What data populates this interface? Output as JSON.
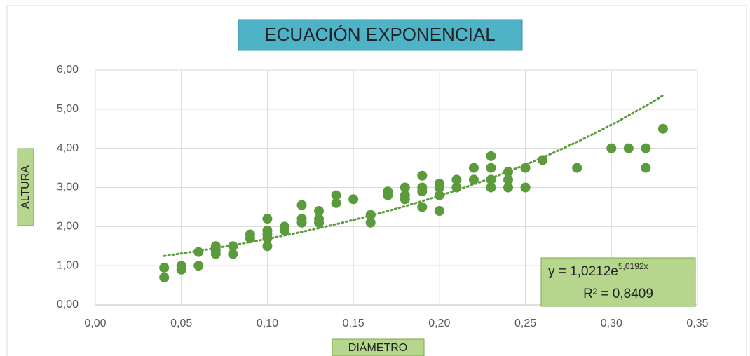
{
  "chart_data": {
    "type": "scatter",
    "title": "ECUACIÓN EXPONENCIAL",
    "x_label": "DIÁMETRO",
    "y_label": "ALTURA",
    "x": [
      0.04,
      0.04,
      0.05,
      0.05,
      0.06,
      0.06,
      0.07,
      0.07,
      0.07,
      0.08,
      0.08,
      0.09,
      0.09,
      0.1,
      0.1,
      0.1,
      0.1,
      0.1,
      0.11,
      0.11,
      0.12,
      0.12,
      0.12,
      0.13,
      0.13,
      0.13,
      0.14,
      0.14,
      0.15,
      0.16,
      0.16,
      0.17,
      0.17,
      0.18,
      0.18,
      0.18,
      0.19,
      0.19,
      0.19,
      0.19,
      0.2,
      0.2,
      0.2,
      0.2,
      0.21,
      0.21,
      0.22,
      0.22,
      0.23,
      0.23,
      0.23,
      0.23,
      0.24,
      0.24,
      0.24,
      0.25,
      0.25,
      0.26,
      0.28,
      0.3,
      0.31,
      0.32,
      0.32,
      0.33
    ],
    "values": [
      0.95,
      0.7,
      1.0,
      0.9,
      1.35,
      1.0,
      1.5,
      1.4,
      1.3,
      1.5,
      1.3,
      1.8,
      1.7,
      2.2,
      1.9,
      1.8,
      1.7,
      1.5,
      2.0,
      1.9,
      2.55,
      2.2,
      2.1,
      2.4,
      2.2,
      2.1,
      2.8,
      2.6,
      2.7,
      2.3,
      2.1,
      2.9,
      2.8,
      3.0,
      2.8,
      2.7,
      3.3,
      3.0,
      2.9,
      2.5,
      3.1,
      3.0,
      2.8,
      2.4,
      3.2,
      3.0,
      3.5,
      3.2,
      3.8,
      3.5,
      3.2,
      3.0,
      3.4,
      3.2,
      3.0,
      3.5,
      3.0,
      3.7,
      3.5,
      4.0,
      4.0,
      4.0,
      3.5,
      4.5
    ],
    "color": "#5b9b3c",
    "trendline": {
      "a": 1.0212,
      "b": 5.0192,
      "xlim": [
        0.04,
        0.33
      ],
      "label": "y = 1,0212e",
      "exponent_label": "5,0192x",
      "r2_label": "R² = 0,8409"
    },
    "xlim": [
      0,
      0.35
    ],
    "ylim": [
      0,
      6
    ],
    "xticks": [
      {
        "value": 0,
        "label": "0,00"
      },
      {
        "value": 0.05,
        "label": "0,05"
      },
      {
        "value": 0.1,
        "label": "0,10"
      },
      {
        "value": 0.15,
        "label": "0,15"
      },
      {
        "value": 0.2,
        "label": "0,20"
      },
      {
        "value": 0.25,
        "label": "0,25"
      },
      {
        "value": 0.3,
        "label": "0,30"
      },
      {
        "value": 0.35,
        "label": "0,35"
      }
    ],
    "yticks": [
      {
        "value": 0,
        "label": "0,00"
      },
      {
        "value": 1,
        "label": "1,00"
      },
      {
        "value": 2,
        "label": "2,00"
      },
      {
        "value": 3,
        "label": "3,00"
      },
      {
        "value": 4,
        "label": "4,00"
      },
      {
        "value": 5,
        "label": "5,00"
      },
      {
        "value": 6,
        "label": "6,00"
      }
    ],
    "grid": true
  }
}
